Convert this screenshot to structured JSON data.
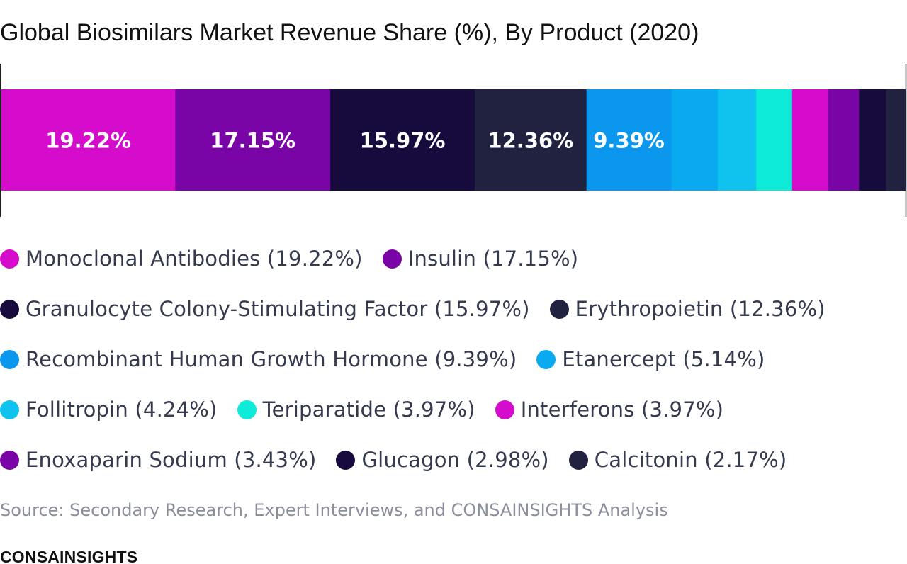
{
  "title": "Global Biosimilars Market Revenue Share (%), By Product (2020)",
  "source": "Source: Secondary Research, Expert Interviews, and CONSAINSIGHTS Analysis",
  "brand": "CONSAINSIGHTS",
  "chart_data": {
    "type": "bar",
    "title": "Global Biosimilars Market Revenue Share (%), By Product (2020)",
    "orientation": "horizontal-stacked-100",
    "value_unit": "%",
    "label_threshold": 5,
    "categories": [
      "Monoclonal Antibodies",
      "Insulin",
      "Granulocyte Colony-Stimulating Factor",
      "Erythropoietin",
      "Recombinant Human Growth Hormone",
      "Etanercept",
      "Follitropin",
      "Teriparatide",
      "Interferons",
      "Enoxaparin Sodium",
      "Glucagon",
      "Calcitonin"
    ],
    "values": [
      19.22,
      17.15,
      15.97,
      12.36,
      9.39,
      5.14,
      4.24,
      3.97,
      3.97,
      3.43,
      2.98,
      2.17
    ],
    "colors": [
      "#d60ccc",
      "#7a05a6",
      "#170b3d",
      "#212140",
      "#0b97ee",
      "#0aaaf0",
      "#10c3ee",
      "#0eecd9",
      "#d60ccc",
      "#7a05a6",
      "#170b3d",
      "#212140"
    ],
    "data_labels": [
      "19.22%",
      "17.15%",
      "15.97%",
      "12.36%",
      "9.39%",
      "",
      "",
      "",
      "",
      "",
      "",
      ""
    ],
    "legend_labels": [
      "Monoclonal Antibodies (19.22%)",
      "Insulin (17.15%)",
      "Granulocyte Colony-Stimulating Factor (15.97%)",
      "Erythropoietin (12.36%)",
      "Recombinant Human Growth Hormone (9.39%)",
      "Etanercept (5.14%)",
      "Follitropin (4.24%)",
      "Teriparatide (3.97%)",
      "Interferons (3.97%)",
      "Enoxaparin Sodium (3.43%)",
      "Glucagon (2.98%)",
      "Calcitonin (2.17%)"
    ],
    "legend_rows": [
      [
        0,
        1
      ],
      [
        2,
        3
      ],
      [
        4,
        5
      ],
      [
        6,
        7,
        8
      ],
      [
        9,
        10,
        11
      ]
    ],
    "legend_position": "bottom",
    "grid": false
  }
}
